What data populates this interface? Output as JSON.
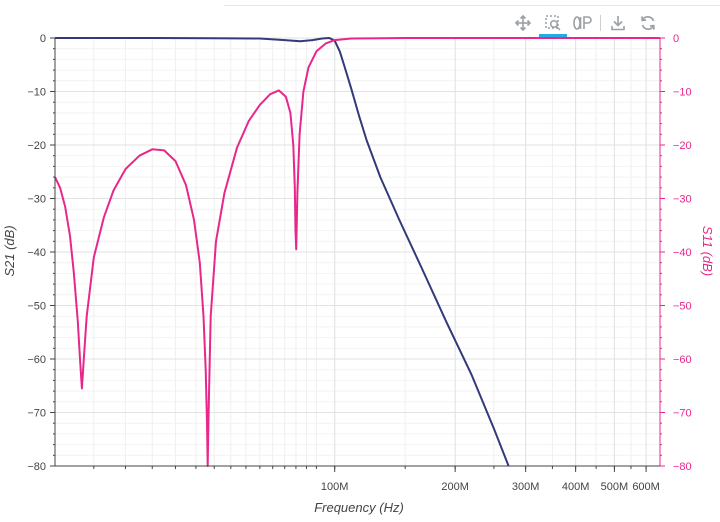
{
  "toolbar": {
    "tools": [
      {
        "name": "pan-tool",
        "icon": "move-arrows-icon",
        "active": false
      },
      {
        "name": "box-zoom-tool",
        "icon": "box-zoom-icon",
        "active": true
      },
      {
        "name": "hover-tool",
        "icon": "hover-inspect-icon",
        "active": false
      },
      {
        "name": "save-tool",
        "icon": "download-icon",
        "active": false
      },
      {
        "name": "reset-tool",
        "icon": "reset-icon",
        "active": false
      }
    ],
    "active_color": "#26aae1",
    "icon_color": "#9aa0a6"
  },
  "chart_data": {
    "type": "line",
    "title": "",
    "xlabel": "Frequency (Hz)",
    "ylabel_left": "S21 (dB)",
    "ylabel_right": "S11 (dB)",
    "x_scale": "log",
    "xlim": [
      20000000,
      650000000
    ],
    "ylim": [
      -80,
      0
    ],
    "x_tick_labels": [
      {
        "value": 100000000,
        "label": "100M"
      },
      {
        "value": 200000000,
        "label": "200M"
      },
      {
        "value": 300000000,
        "label": "300M"
      },
      {
        "value": 400000000,
        "label": "400M"
      },
      {
        "value": 500000000,
        "label": "500M"
      },
      {
        "value": 600000000,
        "label": "600M"
      }
    ],
    "y_ticks": [
      0,
      -10,
      -20,
      -30,
      -40,
      -50,
      -60,
      -70,
      -80
    ],
    "grid": true,
    "series": [
      {
        "name": "S21 (dB)",
        "color": "#333a7a",
        "axis": "left",
        "x": [
          20000000,
          35000000,
          50000000,
          65000000,
          75000000,
          82000000,
          88000000,
          93000000,
          97000000,
          100000000,
          103000000,
          106000000,
          110000000,
          115000000,
          120000000,
          130000000,
          145000000,
          165000000,
          190000000,
          220000000,
          250000000,
          272000000
        ],
        "y": [
          0,
          0,
          -0.05,
          -0.1,
          -0.4,
          -0.6,
          -0.4,
          -0.1,
          0,
          -0.5,
          -2.5,
          -5.5,
          -9.5,
          -14.5,
          -19,
          -26,
          -34,
          -43,
          -53,
          -63,
          -73,
          -80
        ]
      },
      {
        "name": "S11 (dB)",
        "color": "#e8278c",
        "axis": "right",
        "x": [
          20000000,
          20600000,
          21200000,
          21800000,
          22300000,
          22800000,
          23100000,
          23350000,
          23600000,
          24000000,
          25000000,
          26500000,
          28000000,
          30000000,
          32500000,
          35000000,
          37500000,
          40000000,
          42500000,
          44500000,
          46000000,
          47000000,
          47600000,
          47950000,
          48150000,
          48400000,
          49000000,
          50500000,
          53000000,
          57000000,
          61000000,
          65000000,
          69000000,
          72500000,
          75500000,
          77500000,
          78800000,
          79500000,
          79800000,
          80150000,
          80700000,
          81700000,
          83500000,
          86000000,
          90000000,
          95000000,
          100000000,
          110000000,
          150000000,
          300000000,
          650000000
        ],
        "y": [
          -26,
          -28,
          -31.5,
          -37,
          -44,
          -53,
          -60,
          -65.5,
          -60,
          -52,
          -41,
          -33.5,
          -28.5,
          -24.5,
          -22,
          -20.8,
          -21,
          -23,
          -27.5,
          -34,
          -42,
          -52,
          -62,
          -72,
          -80,
          -70,
          -52,
          -38,
          -29,
          -20.5,
          -15.5,
          -12.5,
          -10.5,
          -9.8,
          -11,
          -14,
          -20,
          -28,
          -36,
          -39.5,
          -29,
          -18,
          -10,
          -5.5,
          -2.5,
          -1,
          -0.4,
          -0.1,
          0,
          0,
          0
        ]
      }
    ]
  }
}
